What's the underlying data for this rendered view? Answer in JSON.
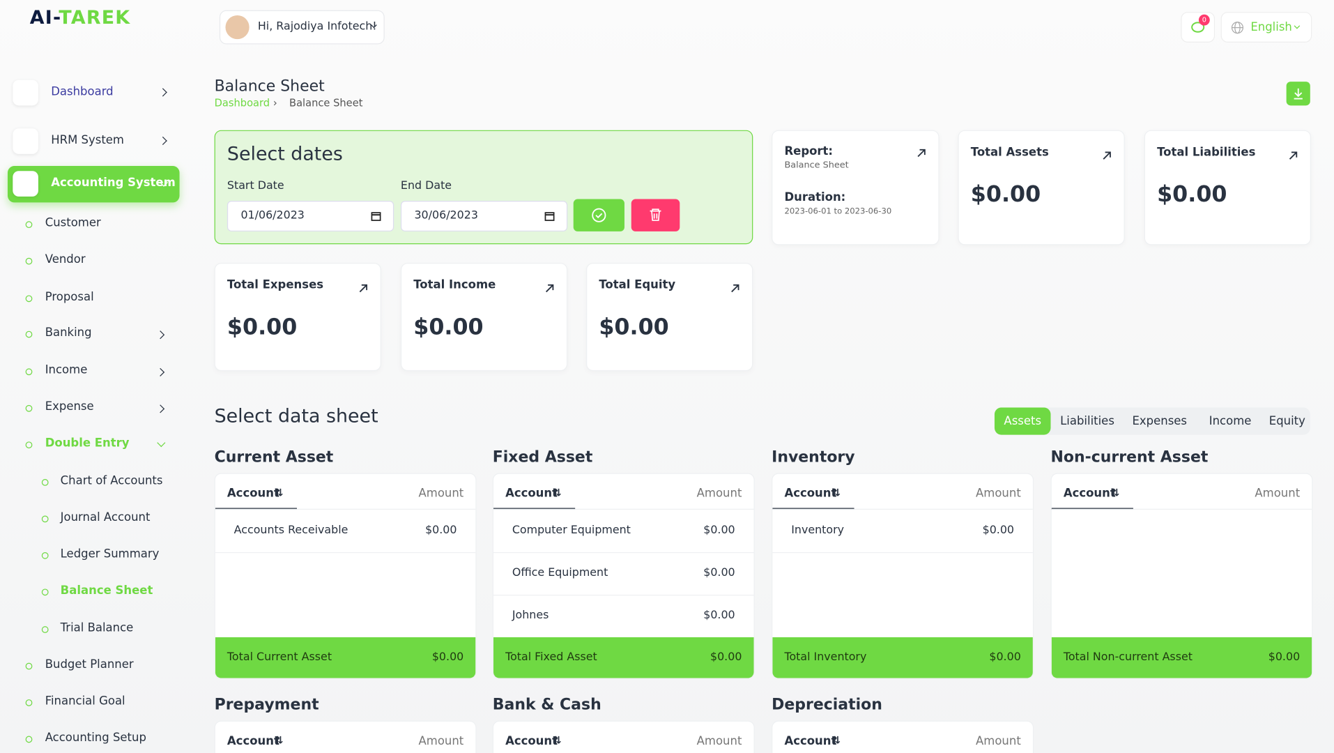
{
  "brand": {
    "prefix": "AI-",
    "name": "TAREK"
  },
  "header": {
    "greeting": "Hi, Rajodiya Infotech!",
    "notifications": "0",
    "language": "English"
  },
  "sidebar": {
    "items": [
      {
        "label": "Dashboard"
      },
      {
        "label": "HRM System"
      },
      {
        "label": "Accounting System"
      }
    ],
    "submenu": [
      "Customer",
      "Vendor",
      "Proposal",
      "Banking",
      "Income",
      "Expense",
      "Double Entry"
    ],
    "double_entry": [
      "Chart of Accounts",
      "Journal Account",
      "Ledger Summary",
      "Balance Sheet",
      "Trial Balance"
    ],
    "after": [
      "Budget Planner",
      "Financial Goal",
      "Accounting Setup"
    ]
  },
  "page": {
    "title": "Balance Sheet",
    "breadcrumb": [
      "Dashboard",
      "Balance Sheet"
    ]
  },
  "dates": {
    "title": "Select dates",
    "start_label": "Start Date",
    "start_value": "01/06/2023",
    "end_label": "End Date",
    "end_value": "30/06/2023"
  },
  "report": {
    "label": "Report:",
    "name": "Balance Sheet",
    "duration_label": "Duration:",
    "duration": "2023-06-01 to 2023-06-30"
  },
  "stats": [
    {
      "label": "Total Assets",
      "value": "$0.00"
    },
    {
      "label": "Total Liabilities",
      "value": "$0.00"
    },
    {
      "label": "Total Expenses",
      "value": "$0.00"
    },
    {
      "label": "Total Income",
      "value": "$0.00"
    },
    {
      "label": "Total Equity",
      "value": "$0.00"
    }
  ],
  "data_sheet": {
    "title": "Select data sheet",
    "tabs": [
      "Assets",
      "Liabilities",
      "Expenses",
      "Income",
      "Equity"
    ],
    "sections": [
      {
        "title": "Current Asset",
        "header": [
          "Account",
          "Amount"
        ],
        "rows": [
          [
            "Accounts Receivable",
            "$0.00"
          ]
        ],
        "total": [
          "Total Current Asset",
          "$0.00"
        ]
      },
      {
        "title": "Fixed Asset",
        "header": [
          "Account",
          "Amount"
        ],
        "rows": [
          [
            "Computer Equipment",
            "$0.00"
          ],
          [
            "Office Equipment",
            "$0.00"
          ],
          [
            "Johnes",
            "$0.00"
          ]
        ],
        "total": [
          "Total Fixed Asset",
          "$0.00"
        ]
      },
      {
        "title": "Inventory",
        "header": [
          "Account",
          "Amount"
        ],
        "rows": [
          [
            "Inventory",
            "$0.00"
          ]
        ],
        "total": [
          "Total Inventory",
          "$0.00"
        ]
      },
      {
        "title": "Non-current Asset",
        "header": [
          "Account",
          "Amount"
        ],
        "rows": [],
        "total": [
          "Total Non-current Asset",
          "$0.00"
        ]
      },
      {
        "title": "Prepayment",
        "header": [
          "Account",
          "Amount"
        ],
        "rows": []
      },
      {
        "title": "Bank & Cash",
        "header": [
          "Account",
          "Amount"
        ],
        "rows": []
      },
      {
        "title": "Depreciation",
        "header": [
          "Account",
          "Amount"
        ],
        "rows": []
      }
    ]
  }
}
